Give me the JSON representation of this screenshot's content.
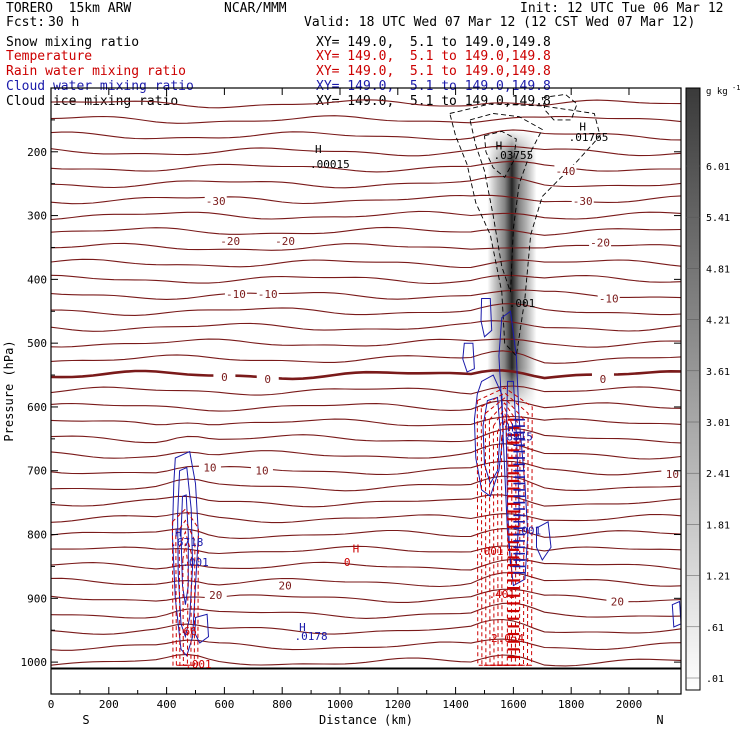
{
  "header": {
    "model": "TORERO  15km ARW",
    "center": "NCAR/MMM",
    "init": "Init: 12 UTC Tue 06 Mar 12",
    "fcst_label": "Fcst:",
    "fcst_value": "30 h",
    "valid": "Valid: 18 UTC Wed 07 Mar 12 (12 CST Wed 07 Mar 12)"
  },
  "fields": [
    {
      "name": "Snow mixing ratio",
      "xy": "XY= 149.0,  5.1 to 149.0,149.8",
      "color": "#000000"
    },
    {
      "name": "Temperature",
      "xy": "XY= 149.0,  5.1 to 149.0,149.8",
      "color": "#cc0000"
    },
    {
      "name": "Rain water mixing ratio",
      "xy": "XY= 149.0,  5.1 to 149.0,149.8",
      "color": "#cc0000"
    },
    {
      "name": "Cloud water mixing ratio",
      "xy": "XY= 149.0,  5.1 to 149.0,149.8",
      "color": "#1a1aaa"
    },
    {
      "name": "Cloud ice mixing ratio",
      "xy": "XY= 149.0,  5.1 to 149.0,149.8",
      "color": "#000000"
    }
  ],
  "chart_data": {
    "type": "cross-section-contour",
    "xlabel": "Distance (km)",
    "ylabel": "Pressure (hPa)",
    "xlim": [
      0,
      2180
    ],
    "ylim": [
      1050,
      100
    ],
    "x_ticks": [
      "0",
      "200",
      "400",
      "600",
      "800",
      "1000",
      "1200",
      "1400",
      "1600",
      "1800",
      "2000"
    ],
    "y_ticks": [
      "200",
      "300",
      "400",
      "500",
      "600",
      "700",
      "800",
      "900",
      "1000"
    ],
    "end_labels": {
      "left": "S",
      "right": "N"
    },
    "colorbar": {
      "unit": "g kg",
      "unit_exp": "-1",
      "labels": [
        "6.01",
        "5.41",
        "4.81",
        "4.21",
        "3.61",
        "3.01",
        "2.41",
        "1.81",
        "1.21",
        ".61",
        ".01"
      ]
    },
    "isotherm_labels": [
      {
        "text": "-40",
        "x": 1780,
        "p": 230
      },
      {
        "text": "-30",
        "x": 570,
        "p": 277
      },
      {
        "text": "-30",
        "x": 1840,
        "p": 277
      },
      {
        "text": "-20",
        "x": 620,
        "p": 340
      },
      {
        "text": "-20",
        "x": 810,
        "p": 340
      },
      {
        "text": "-20",
        "x": 1900,
        "p": 342
      },
      {
        "text": "-10",
        "x": 640,
        "p": 423
      },
      {
        "text": "-10",
        "x": 750,
        "p": 423
      },
      {
        "text": "-10",
        "x": 1930,
        "p": 430
      },
      {
        "text": "0",
        "x": 600,
        "p": 553
      },
      {
        "text": "0",
        "x": 750,
        "p": 556
      },
      {
        "text": "0",
        "x": 1910,
        "p": 556
      },
      {
        "text": "10",
        "x": 550,
        "p": 695
      },
      {
        "text": "10",
        "x": 730,
        "p": 700
      },
      {
        "text": "10",
        "x": 2150,
        "p": 705
      },
      {
        "text": "20",
        "x": 570,
        "p": 895
      },
      {
        "text": "20",
        "x": 810,
        "p": 880
      },
      {
        "text": "20",
        "x": 1960,
        "p": 905
      }
    ],
    "extrema_labels": [
      {
        "text": "H",
        "x": 925,
        "p": 196,
        "color": "#000000"
      },
      {
        "text": ".00015",
        "x": 965,
        "p": 219,
        "color": "#000000"
      },
      {
        "text": "H",
        "x": 1550,
        "p": 190,
        "color": "#000000"
      },
      {
        "text": ".03755",
        "x": 1600,
        "p": 205,
        "color": "#000000"
      },
      {
        "text": "H",
        "x": 1840,
        "p": 160,
        "color": "#000000"
      },
      {
        "text": ".01765",
        "x": 1860,
        "p": 177,
        "color": "#000000"
      },
      {
        "text": ".001",
        "x": 1630,
        "p": 437,
        "color": "#000000"
      },
      {
        "text": "H",
        "x": 1590,
        "p": 632,
        "color": "#1a1aaa"
      },
      {
        "text": ".8915",
        "x": 1610,
        "p": 646,
        "color": "#1a1aaa"
      },
      {
        "text": ".001",
        "x": 1650,
        "p": 794,
        "color": "#1a1aaa"
      },
      {
        "text": ".001",
        "x": 1520,
        "p": 826,
        "color": "#cc0000"
      },
      {
        "text": ".401",
        "x": 1560,
        "p": 893,
        "color": "#cc0000"
      },
      {
        "text": "2.054",
        "x": 1580,
        "p": 962,
        "color": "#cc0000"
      },
      {
        "text": "H",
        "x": 440,
        "p": 797,
        "color": "#1a1aaa"
      },
      {
        "text": ".6718",
        "x": 470,
        "p": 812,
        "color": "#1a1aaa"
      },
      {
        "text": ".001",
        "x": 500,
        "p": 843,
        "color": "#1a1aaa"
      },
      {
        "text": "H",
        "x": 1055,
        "p": 822,
        "color": "#cc0000"
      },
      {
        "text": "0",
        "x": 1025,
        "p": 843,
        "color": "#cc0000"
      },
      {
        "text": "H",
        "x": 870,
        "p": 945,
        "color": "#1a1aaa"
      },
      {
        "text": ".0178",
        "x": 900,
        "p": 959,
        "color": "#1a1aaa"
      },
      {
        "text": ".66",
        "x": 470,
        "p": 951,
        "color": "#cc0000"
      },
      {
        "text": ".001",
        "x": 510,
        "p": 1003,
        "color": "#cc0000"
      }
    ],
    "snow_max_value": 6.01
  }
}
